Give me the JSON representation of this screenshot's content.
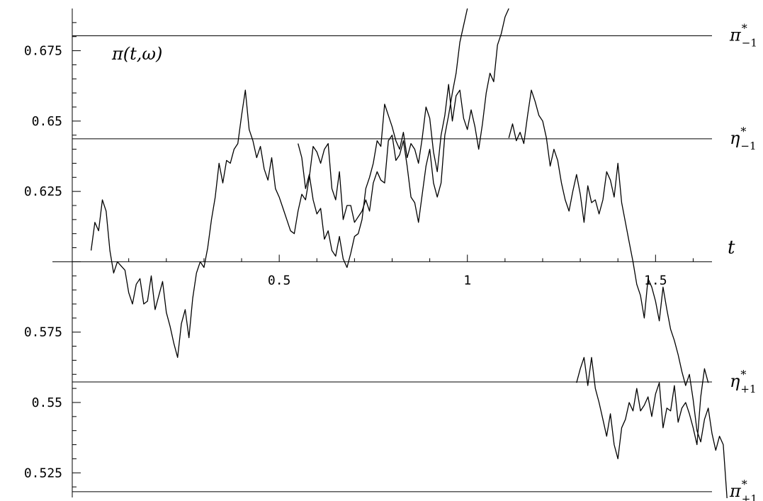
{
  "chart_data": {
    "type": "line",
    "title": "",
    "xlabel": "t",
    "ylabel": "",
    "xlim": [
      -0.05,
      1.65
    ],
    "ylim": [
      0.51625,
      0.69
    ],
    "axis_crossing_y": 0.6,
    "grid": false,
    "x_ticks": [
      {
        "value": 0.5,
        "label": "0.5"
      },
      {
        "value": 1.0,
        "label": "1"
      },
      {
        "value": 1.5,
        "label": "1.5"
      }
    ],
    "y_ticks": [
      {
        "value": 0.675,
        "label": "0.675"
      },
      {
        "value": 0.65,
        "label": "0.65"
      },
      {
        "value": 0.625,
        "label": "0.625"
      },
      {
        "value": 0.575,
        "label": "0.575"
      },
      {
        "value": 0.55,
        "label": "0.55"
      },
      {
        "value": 0.525,
        "label": "0.525"
      }
    ],
    "curve_label": {
      "base": "π",
      "args": "(t,ω)"
    },
    "reference_lines": [
      {
        "id": "pi-minus",
        "value": 0.6803,
        "base": "π",
        "sup": "*",
        "sub": "−1"
      },
      {
        "id": "eta-minus",
        "value": 0.6437,
        "base": "η",
        "sup": "*",
        "sub": "−1"
      },
      {
        "id": "eta-plus",
        "value": 0.5573,
        "base": "η",
        "sup": "*",
        "sub": "+1"
      },
      {
        "id": "pi-plus",
        "value": 0.5183,
        "base": "π",
        "sup": "*",
        "sub": "+1"
      }
    ],
    "series": [
      {
        "points": [
          [
            0.0,
            0.604
          ],
          [
            0.01,
            0.614
          ],
          [
            0.02,
            0.611
          ],
          [
            0.03,
            0.622
          ],
          [
            0.04,
            0.618
          ],
          [
            0.05,
            0.604
          ],
          [
            0.06,
            0.596
          ],
          [
            0.07,
            0.6
          ],
          [
            0.09,
            0.597
          ],
          [
            0.1,
            0.589
          ],
          [
            0.11,
            0.585
          ],
          [
            0.12,
            0.592
          ],
          [
            0.13,
            0.594
          ],
          [
            0.14,
            0.585
          ],
          [
            0.15,
            0.586
          ],
          [
            0.16,
            0.595
          ],
          [
            0.17,
            0.583
          ],
          [
            0.18,
            0.588
          ],
          [
            0.19,
            0.593
          ],
          [
            0.2,
            0.582
          ],
          [
            0.21,
            0.577
          ],
          [
            0.22,
            0.571
          ],
          [
            0.23,
            0.566
          ],
          [
            0.24,
            0.578
          ],
          [
            0.25,
            0.583
          ],
          [
            0.26,
            0.573
          ],
          [
            0.27,
            0.587
          ],
          [
            0.28,
            0.596
          ],
          [
            0.29,
            0.6
          ],
          [
            0.3,
            0.598
          ],
          [
            0.31,
            0.605
          ],
          [
            0.32,
            0.615
          ],
          [
            0.33,
            0.623
          ],
          [
            0.34,
            0.635
          ],
          [
            0.35,
            0.628
          ],
          [
            0.36,
            0.636
          ],
          [
            0.37,
            0.635
          ],
          [
            0.38,
            0.64
          ],
          [
            0.39,
            0.642
          ],
          [
            0.4,
            0.652
          ],
          [
            0.41,
            0.661
          ],
          [
            0.42,
            0.647
          ],
          [
            0.43,
            0.643
          ],
          [
            0.44,
            0.637
          ],
          [
            0.45,
            0.641
          ],
          [
            0.46,
            0.633
          ],
          [
            0.47,
            0.629
          ],
          [
            0.48,
            0.637
          ],
          [
            0.49,
            0.626
          ],
          [
            0.5,
            0.623
          ],
          [
            0.51,
            0.619
          ],
          [
            0.52,
            0.615
          ],
          [
            0.53,
            0.611
          ],
          [
            0.54,
            0.61
          ],
          [
            0.55,
            0.618
          ],
          [
            0.56,
            0.624
          ],
          [
            0.57,
            0.622
          ],
          [
            0.58,
            0.63
          ],
          [
            0.59,
            0.641
          ],
          [
            0.6,
            0.639
          ],
          [
            0.61,
            0.635
          ],
          [
            0.62,
            0.64
          ],
          [
            0.63,
            0.642
          ],
          [
            0.64,
            0.626
          ],
          [
            0.65,
            0.622
          ],
          [
            0.66,
            0.632
          ],
          [
            0.67,
            0.615
          ],
          [
            0.68,
            0.62
          ],
          [
            0.69,
            0.62
          ],
          [
            0.7,
            0.614
          ],
          [
            0.72,
            0.618
          ],
          [
            0.73,
            0.622
          ],
          [
            0.74,
            0.618
          ],
          [
            0.75,
            0.628
          ],
          [
            0.76,
            0.632
          ],
          [
            0.77,
            0.629
          ],
          [
            0.78,
            0.628
          ],
          [
            0.79,
            0.643
          ],
          [
            0.8,
            0.645
          ],
          [
            0.81,
            0.636
          ],
          [
            0.82,
            0.638
          ],
          [
            0.83,
            0.643
          ],
          [
            0.84,
            0.634
          ],
          [
            0.85,
            0.623
          ],
          [
            0.86,
            0.621
          ],
          [
            0.87,
            0.614
          ],
          [
            0.88,
            0.624
          ],
          [
            0.89,
            0.634
          ],
          [
            0.9,
            0.64
          ],
          [
            0.91,
            0.628
          ],
          [
            0.92,
            0.623
          ],
          [
            0.93,
            0.628
          ],
          [
            0.94,
            0.645
          ],
          [
            0.95,
            0.652
          ],
          [
            0.96,
            0.66
          ],
          [
            0.97,
            0.667
          ],
          [
            0.98,
            0.678
          ],
          [
            0.99,
            0.684
          ],
          [
            1.0,
            0.69
          ]
        ]
      },
      {
        "points": [
          [
            0.55,
            0.642
          ],
          [
            0.56,
            0.637
          ],
          [
            0.57,
            0.626
          ],
          [
            0.58,
            0.631
          ],
          [
            0.59,
            0.622
          ],
          [
            0.6,
            0.617
          ],
          [
            0.61,
            0.619
          ],
          [
            0.62,
            0.608
          ],
          [
            0.63,
            0.611
          ],
          [
            0.64,
            0.604
          ],
          [
            0.65,
            0.602
          ],
          [
            0.66,
            0.609
          ],
          [
            0.67,
            0.601
          ],
          [
            0.68,
            0.598
          ],
          [
            0.69,
            0.603
          ],
          [
            0.7,
            0.609
          ],
          [
            0.71,
            0.61
          ],
          [
            0.72,
            0.615
          ],
          [
            0.73,
            0.626
          ],
          [
            0.74,
            0.63
          ],
          [
            0.75,
            0.635
          ],
          [
            0.76,
            0.643
          ],
          [
            0.77,
            0.641
          ],
          [
            0.78,
            0.656
          ],
          [
            0.79,
            0.652
          ],
          [
            0.8,
            0.648
          ],
          [
            0.81,
            0.643
          ],
          [
            0.82,
            0.64
          ],
          [
            0.83,
            0.646
          ],
          [
            0.84,
            0.637
          ],
          [
            0.85,
            0.642
          ],
          [
            0.86,
            0.64
          ],
          [
            0.87,
            0.635
          ],
          [
            0.88,
            0.644
          ],
          [
            0.89,
            0.655
          ],
          [
            0.9,
            0.651
          ],
          [
            0.91,
            0.639
          ],
          [
            0.92,
            0.632
          ],
          [
            0.93,
            0.645
          ],
          [
            0.94,
            0.652
          ],
          [
            0.95,
            0.663
          ],
          [
            0.96,
            0.65
          ],
          [
            0.97,
            0.659
          ],
          [
            0.98,
            0.661
          ],
          [
            0.99,
            0.651
          ],
          [
            1.0,
            0.647
          ],
          [
            1.01,
            0.654
          ],
          [
            1.02,
            0.648
          ],
          [
            1.03,
            0.64
          ],
          [
            1.04,
            0.649
          ],
          [
            1.05,
            0.66
          ],
          [
            1.06,
            0.667
          ],
          [
            1.07,
            0.664
          ],
          [
            1.08,
            0.677
          ],
          [
            1.09,
            0.681
          ],
          [
            1.1,
            0.687
          ],
          [
            1.11,
            0.69
          ]
        ]
      },
      {
        "points": [
          [
            1.11,
            0.644
          ],
          [
            1.12,
            0.649
          ],
          [
            1.13,
            0.643
          ],
          [
            1.14,
            0.646
          ],
          [
            1.15,
            0.642
          ],
          [
            1.16,
            0.652
          ],
          [
            1.17,
            0.661
          ],
          [
            1.18,
            0.657
          ],
          [
            1.19,
            0.652
          ],
          [
            1.2,
            0.65
          ],
          [
            1.21,
            0.644
          ],
          [
            1.22,
            0.634
          ],
          [
            1.23,
            0.64
          ],
          [
            1.24,
            0.636
          ],
          [
            1.25,
            0.628
          ],
          [
            1.26,
            0.622
          ],
          [
            1.27,
            0.618
          ],
          [
            1.28,
            0.625
          ],
          [
            1.29,
            0.631
          ],
          [
            1.3,
            0.624
          ],
          [
            1.31,
            0.614
          ],
          [
            1.32,
            0.627
          ],
          [
            1.33,
            0.621
          ],
          [
            1.34,
            0.622
          ],
          [
            1.35,
            0.617
          ],
          [
            1.36,
            0.622
          ],
          [
            1.37,
            0.632
          ],
          [
            1.38,
            0.629
          ],
          [
            1.39,
            0.623
          ],
          [
            1.4,
            0.635
          ],
          [
            1.41,
            0.621
          ],
          [
            1.42,
            0.614
          ],
          [
            1.43,
            0.607
          ],
          [
            1.44,
            0.6
          ],
          [
            1.45,
            0.592
          ],
          [
            1.46,
            0.588
          ],
          [
            1.47,
            0.58
          ],
          [
            1.48,
            0.594
          ],
          [
            1.49,
            0.591
          ],
          [
            1.5,
            0.586
          ],
          [
            1.51,
            0.579
          ],
          [
            1.52,
            0.591
          ],
          [
            1.53,
            0.583
          ],
          [
            1.54,
            0.576
          ],
          [
            1.55,
            0.572
          ],
          [
            1.56,
            0.567
          ],
          [
            1.57,
            0.561
          ],
          [
            1.58,
            0.556
          ],
          [
            1.59,
            0.56
          ],
          [
            1.6,
            0.551
          ],
          [
            1.61,
            0.54
          ],
          [
            1.62,
            0.536
          ],
          [
            1.63,
            0.544
          ],
          [
            1.64,
            0.548
          ],
          [
            1.65,
            0.539
          ],
          [
            1.66,
            0.533
          ],
          [
            1.67,
            0.538
          ],
          [
            1.68,
            0.535
          ],
          [
            1.69,
            0.516
          ]
        ]
      },
      {
        "points": [
          [
            1.29,
            0.557
          ],
          [
            1.3,
            0.562
          ],
          [
            1.31,
            0.566
          ],
          [
            1.32,
            0.556
          ],
          [
            1.33,
            0.566
          ],
          [
            1.34,
            0.555
          ],
          [
            1.35,
            0.55
          ],
          [
            1.36,
            0.544
          ],
          [
            1.37,
            0.538
          ],
          [
            1.38,
            0.546
          ],
          [
            1.39,
            0.535
          ],
          [
            1.4,
            0.53
          ],
          [
            1.41,
            0.541
          ],
          [
            1.42,
            0.544
          ],
          [
            1.43,
            0.55
          ],
          [
            1.44,
            0.547
          ],
          [
            1.45,
            0.555
          ],
          [
            1.46,
            0.547
          ],
          [
            1.47,
            0.549
          ],
          [
            1.48,
            0.552
          ],
          [
            1.49,
            0.545
          ],
          [
            1.5,
            0.553
          ],
          [
            1.51,
            0.557
          ],
          [
            1.52,
            0.541
          ],
          [
            1.53,
            0.548
          ],
          [
            1.54,
            0.547
          ],
          [
            1.55,
            0.556
          ],
          [
            1.56,
            0.543
          ],
          [
            1.57,
            0.548
          ],
          [
            1.58,
            0.55
          ],
          [
            1.59,
            0.546
          ],
          [
            1.6,
            0.541
          ],
          [
            1.61,
            0.535
          ],
          [
            1.62,
            0.552
          ],
          [
            1.63,
            0.562
          ],
          [
            1.64,
            0.557
          ]
        ]
      }
    ]
  }
}
